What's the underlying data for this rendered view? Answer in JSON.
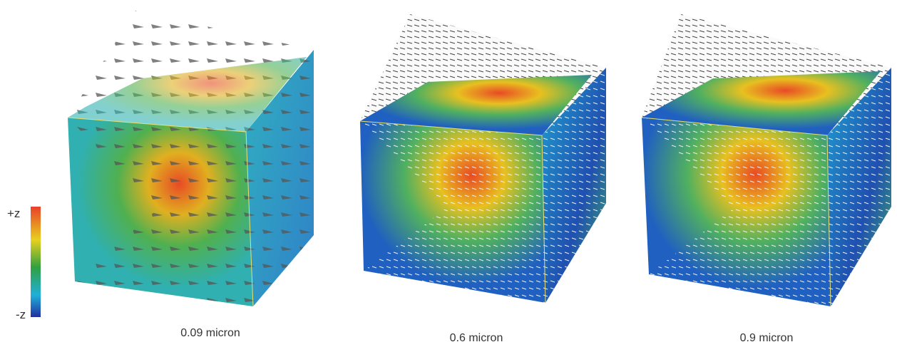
{
  "colorbar": {
    "top_label": "+z",
    "bottom_label": "-z"
  },
  "panels": [
    {
      "label": "0.09 micron"
    },
    {
      "label": "0.6 micron"
    },
    {
      "label": "0.9 micron"
    }
  ]
}
